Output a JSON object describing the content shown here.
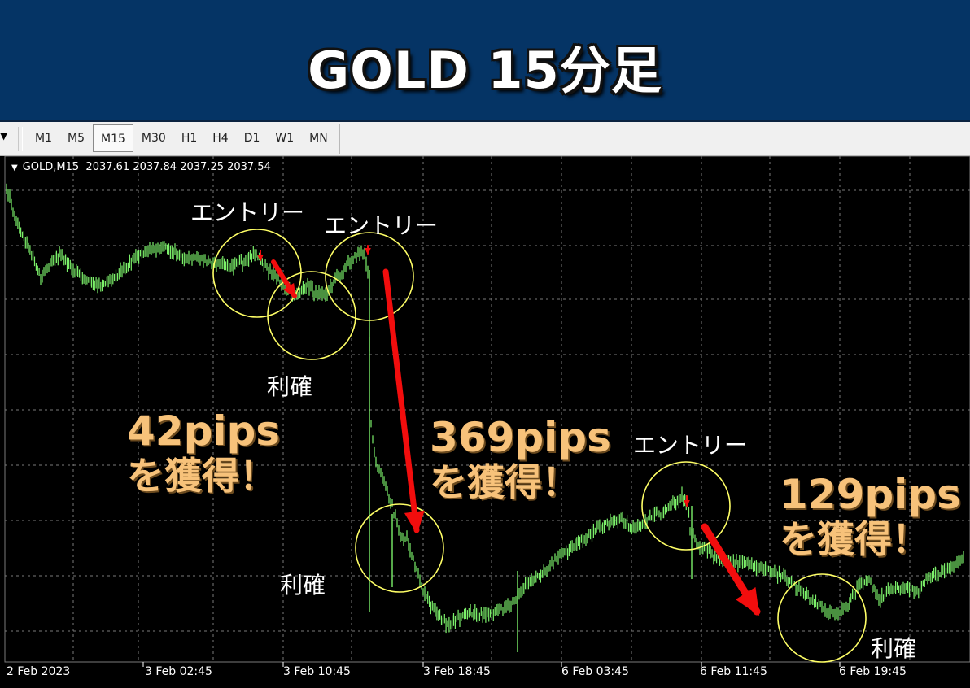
{
  "banner": {
    "title": "GOLD 15分足"
  },
  "toolbar": {
    "timeframes": [
      "M1",
      "M5",
      "M15",
      "M30",
      "H1",
      "H4",
      "D1",
      "W1",
      "MN"
    ],
    "active": "M15"
  },
  "chart": {
    "header_symbol": "GOLD,M15",
    "header_prices": "2037.61 2037.84 2037.25 2037.54",
    "x_labels": [
      "2 Feb 2023",
      "3 Feb 02:45",
      "3 Feb 10:45",
      "3 Feb 18:45",
      "6 Feb 03:45",
      "6 Feb 11:45",
      "6 Feb 19:45"
    ],
    "colors": {
      "background": "#000000",
      "candles": "#7CF06A",
      "arrows": "#F20D0D",
      "circles": "#FFFF66",
      "grid": "#7a7a7a",
      "pips_text": "#F7C27A"
    }
  },
  "annotations": {
    "entry1": "エントリー",
    "entry2": "エントリー",
    "entry3": "エントリー",
    "tp1": "利確",
    "tp2": "利確",
    "tp3": "利確"
  },
  "pips": {
    "p1": {
      "amount": "42pips",
      "text": "を獲得！"
    },
    "p2": {
      "amount": "369pips",
      "text": "を獲得！"
    },
    "p3": {
      "amount": "129pips",
      "text": "を獲得！"
    }
  }
}
